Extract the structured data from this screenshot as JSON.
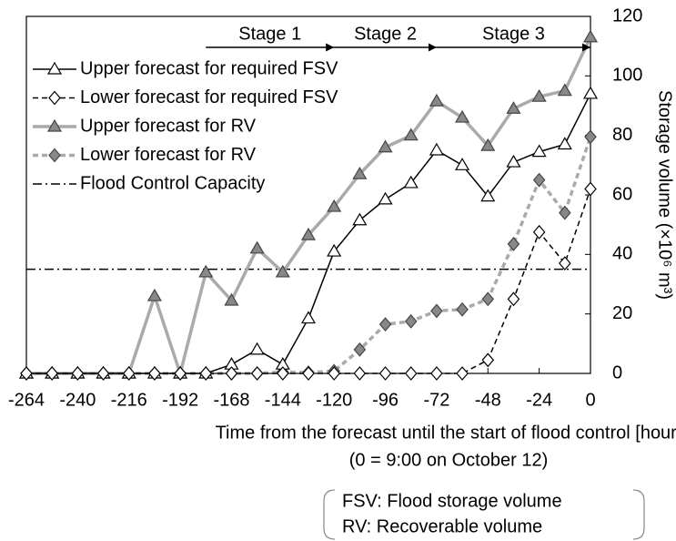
{
  "chart_data": {
    "type": "line",
    "x": [
      -264,
      -252,
      -240,
      -228,
      -216,
      -204,
      -192,
      -180,
      -168,
      -156,
      -144,
      -132,
      -120,
      -108,
      -96,
      -84,
      -72,
      -60,
      -48,
      -36,
      -24,
      -12,
      0
    ],
    "xlim": [
      -264,
      0
    ],
    "xticks": [
      -264,
      -240,
      -216,
      -192,
      -168,
      -144,
      -120,
      -96,
      -72,
      -48,
      -24,
      0
    ],
    "ylim": [
      0,
      120
    ],
    "yticks": [
      0,
      20,
      40,
      60,
      80,
      100,
      120
    ],
    "x_label": "Time from the forecast until the start of flood control [hour]",
    "x_sublabel": "(0 = 9:00 on October 12)",
    "y_label": "Storage volume (×10⁶ m³)",
    "legend": "upper left",
    "series": [
      {
        "name": "Upper forecast for required FSV",
        "color": "#000000",
        "marker": "triangle",
        "marker_fill": "#ffffff",
        "dash": "solid",
        "values": [
          0,
          0,
          0,
          0,
          0,
          0,
          0,
          0,
          3,
          8,
          3,
          18.5,
          41,
          51.5,
          58.5,
          64,
          75,
          70,
          59.5,
          71,
          74.5,
          77,
          94
        ]
      },
      {
        "name": "Lower forecast for required FSV",
        "color": "#000000",
        "marker": "diamond",
        "marker_fill": "#ffffff",
        "dash": "dashed",
        "values": [
          0,
          0,
          0,
          0,
          0,
          0,
          0,
          0,
          0,
          0,
          0,
          0,
          0,
          0,
          0,
          0,
          0,
          0,
          4.5,
          25,
          47.5,
          37,
          62
        ]
      },
      {
        "name": "Upper forecast for RV",
        "color": "#aaaaaa",
        "marker": "triangle",
        "marker_fill": "#888888",
        "dash": "solid",
        "values": [
          0,
          0,
          0,
          0,
          0,
          26,
          0,
          34,
          24.5,
          42,
          34,
          46.5,
          56,
          67,
          76,
          80,
          91.5,
          86,
          76.5,
          89,
          93,
          95,
          113
        ]
      },
      {
        "name": "Lower forecast for RV",
        "color": "#aaaaaa",
        "marker": "diamond",
        "marker_fill": "#888888",
        "dash": "dashed",
        "values": [
          0,
          0,
          0,
          0,
          0,
          0,
          0,
          0,
          0,
          0,
          0.5,
          0.3,
          0.8,
          8,
          16.5,
          17.5,
          21,
          21.5,
          25,
          43.5,
          65,
          54,
          79.5
        ]
      }
    ],
    "hlines": [
      {
        "name": "Flood Control Capacity",
        "value": 35,
        "color": "#000000",
        "dash": "dashdot"
      }
    ],
    "stages": [
      {
        "label": "Stage 1",
        "start": -180,
        "end": -120
      },
      {
        "label": "Stage 2",
        "start": -120,
        "end": -72
      },
      {
        "label": "Stage 3",
        "start": -72,
        "end": 0
      }
    ],
    "notes": [
      "FSV: Flood storage volume",
      "RV: Recoverable volume"
    ]
  }
}
